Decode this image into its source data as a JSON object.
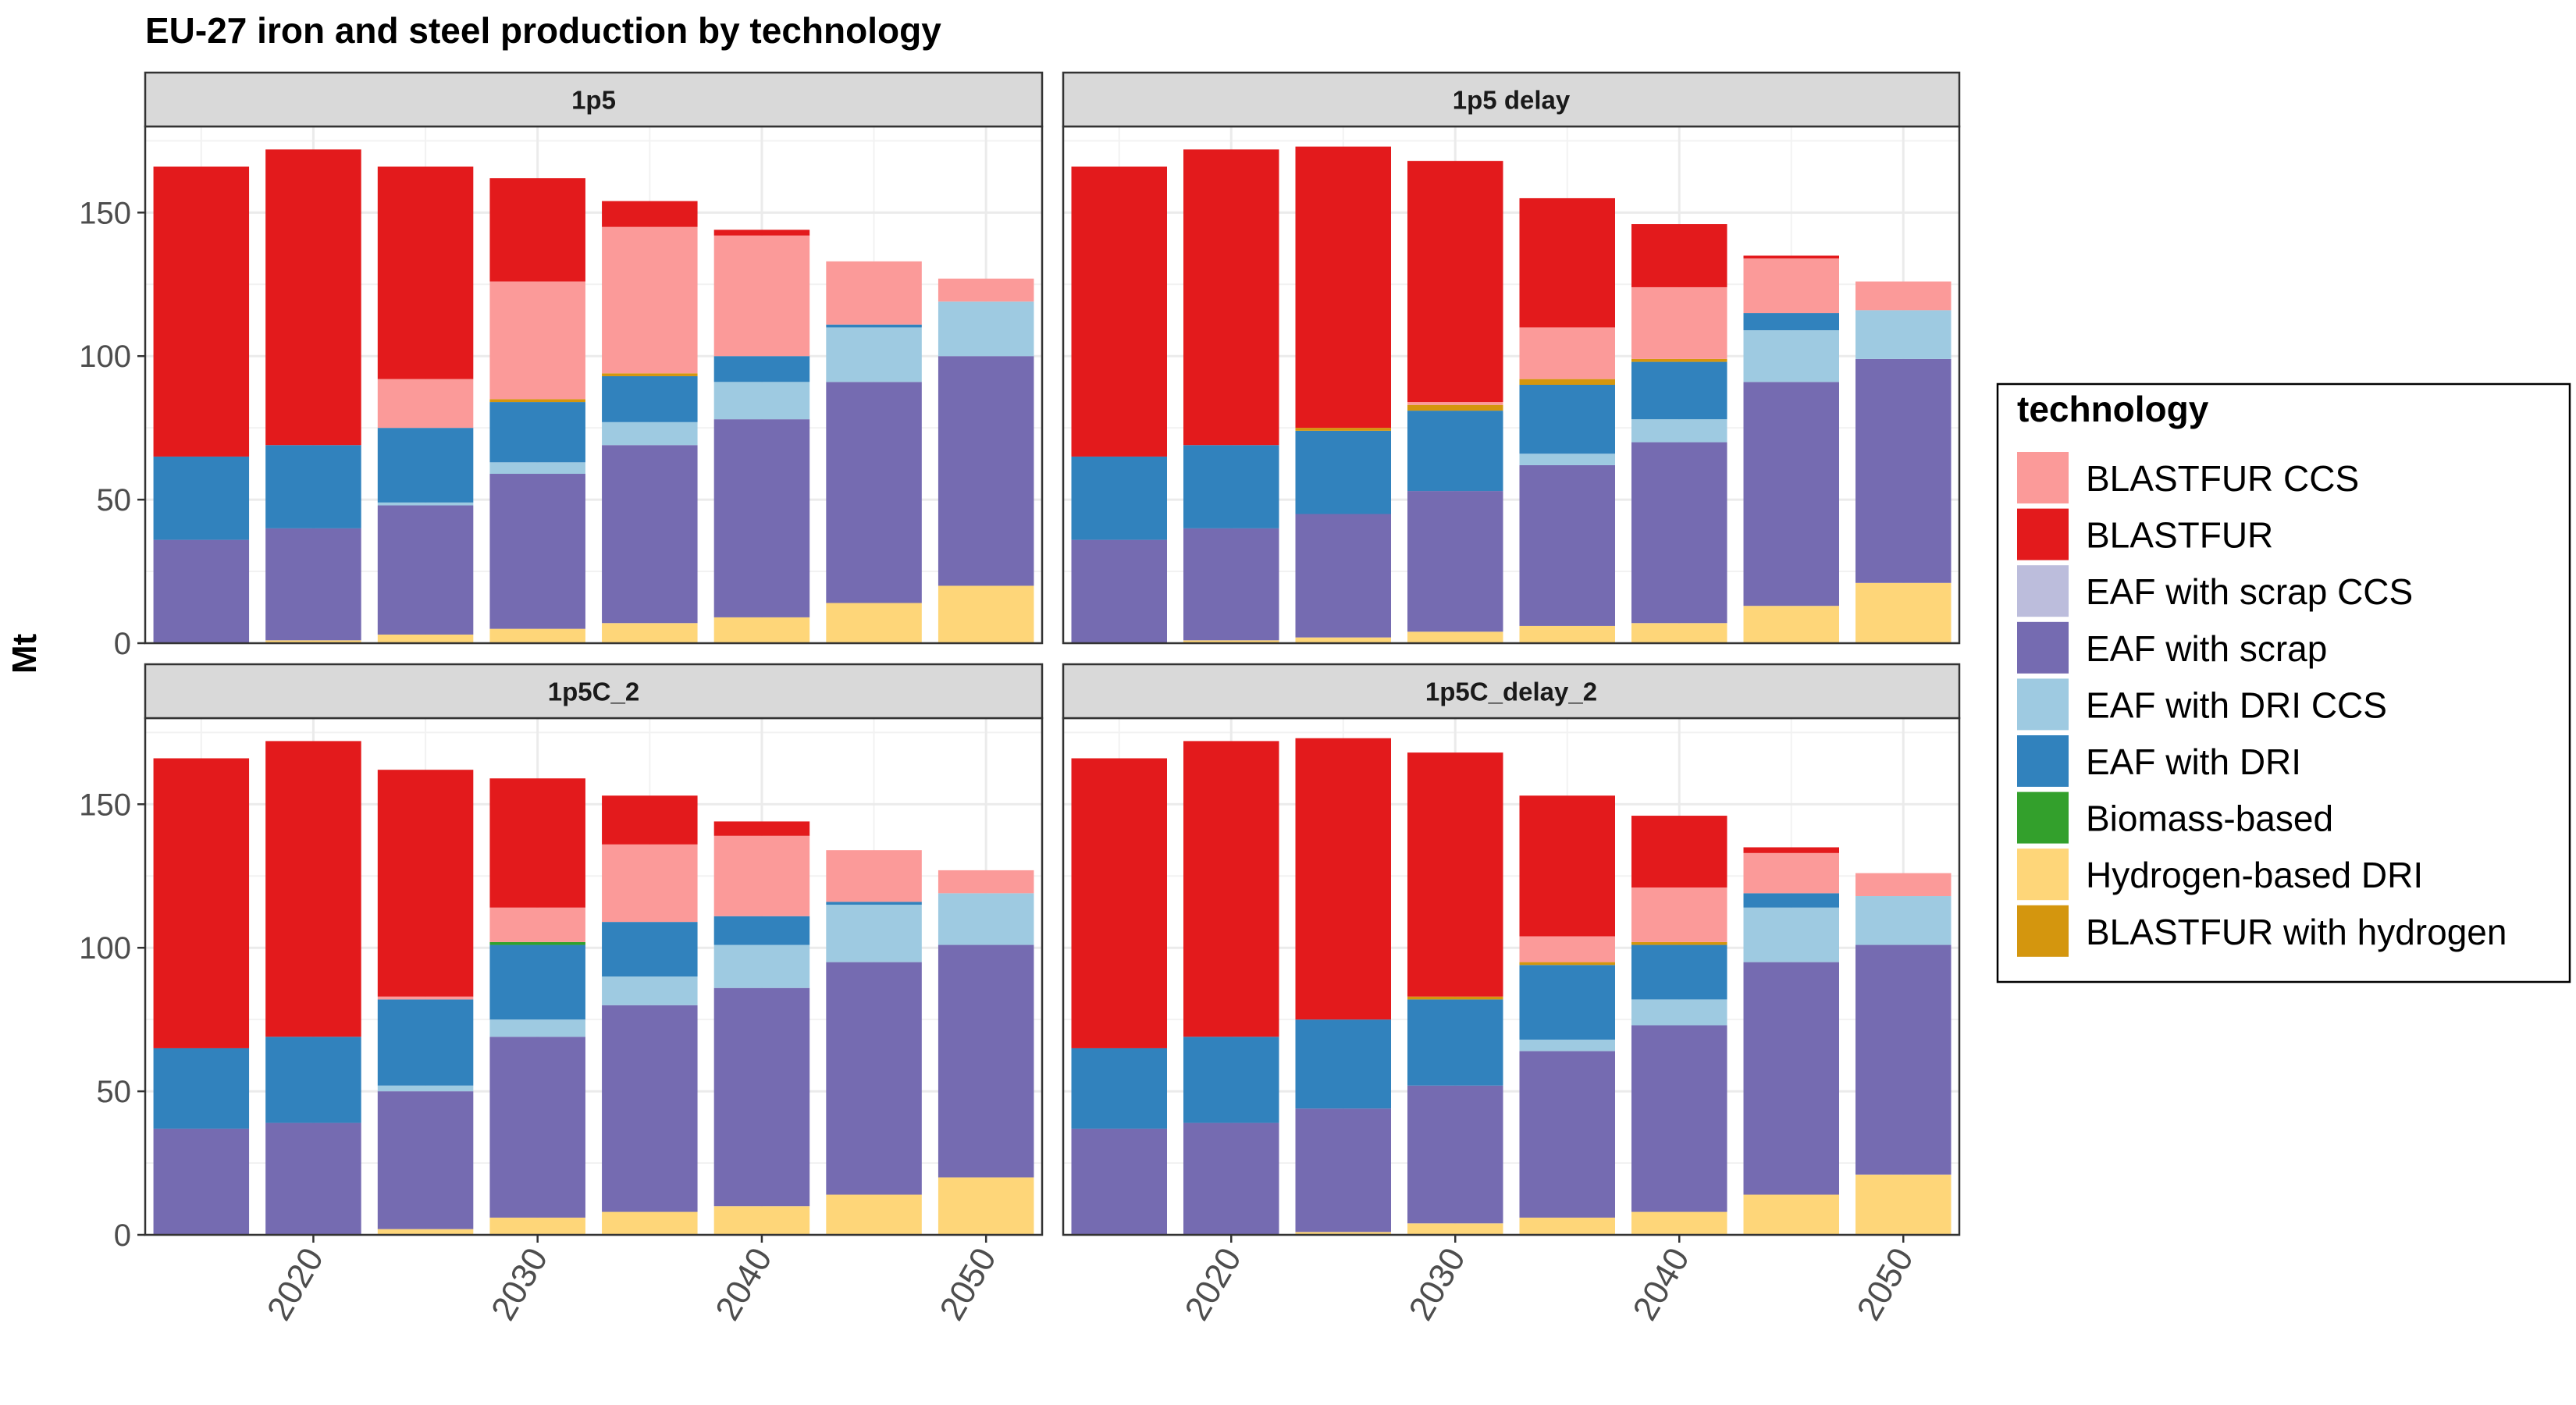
{
  "chart_data": {
    "type": "bar",
    "stacked": true,
    "title": "EU-27 iron and steel production by technology",
    "ylabel": "Mt",
    "xlabel": "",
    "ylim": [
      0,
      180
    ],
    "yticks": [
      0,
      50,
      100,
      150
    ],
    "xlim": [
      2012.5,
      2052.5
    ],
    "xticks": [
      2020,
      2030,
      2040,
      2050
    ],
    "x": [
      2015,
      2020,
      2025,
      2030,
      2035,
      2040,
      2045,
      2050
    ],
    "grid": true,
    "legend": {
      "title": "technology",
      "position": "right"
    },
    "series_styles": [
      {
        "name": "BLASTFUR CCS",
        "color": "#fb9a99"
      },
      {
        "name": "BLASTFUR",
        "color": "#e31a1c"
      },
      {
        "name": "EAF with scrap CCS",
        "color": "#bcbddc"
      },
      {
        "name": "EAF with scrap",
        "color": "#756bb1"
      },
      {
        "name": "EAF with DRI CCS",
        "color": "#9ecae1"
      },
      {
        "name": "EAF with DRI",
        "color": "#3182bd"
      },
      {
        "name": "Biomass-based",
        "color": "#33a02c"
      },
      {
        "name": "Hydrogen-based DRI",
        "color": "#fed679"
      },
      {
        "name": "BLASTFUR with hydrogen",
        "color": "#d4960e"
      }
    ],
    "stack_order": [
      "Hydrogen-based DRI",
      "EAF with scrap",
      "EAF with scrap CCS",
      "EAF with DRI CCS",
      "EAF with DRI",
      "Biomass-based",
      "BLASTFUR with hydrogen",
      "BLASTFUR CCS",
      "BLASTFUR"
    ],
    "panels": [
      {
        "name": "1p5",
        "series": [
          {
            "name": "Hydrogen-based DRI",
            "values": [
              0,
              1,
              3,
              5,
              7,
              9,
              14,
              20
            ]
          },
          {
            "name": "EAF with scrap",
            "values": [
              36,
              39,
              45,
              54,
              62,
              69,
              77,
              80
            ]
          },
          {
            "name": "EAF with scrap CCS",
            "values": [
              0,
              0,
              0,
              0,
              0,
              0,
              0,
              0
            ]
          },
          {
            "name": "EAF with DRI CCS",
            "values": [
              0,
              0,
              1,
              4,
              8,
              13,
              19,
              19
            ]
          },
          {
            "name": "EAF with DRI",
            "values": [
              29,
              29,
              26,
              21,
              16,
              9,
              1,
              0
            ]
          },
          {
            "name": "Biomass-based",
            "values": [
              0,
              0,
              0,
              0,
              0,
              0,
              0,
              0
            ]
          },
          {
            "name": "BLASTFUR with hydrogen",
            "values": [
              0,
              0,
              0,
              1,
              1,
              0,
              0,
              0
            ]
          },
          {
            "name": "BLASTFUR CCS",
            "values": [
              0,
              0,
              17,
              41,
              51,
              42,
              22,
              8
            ]
          },
          {
            "name": "BLASTFUR",
            "values": [
              101,
              103,
              74,
              36,
              9,
              2,
              0,
              0
            ]
          }
        ]
      },
      {
        "name": "1p5 delay",
        "series": [
          {
            "name": "Hydrogen-based DRI",
            "values": [
              0,
              1,
              2,
              4,
              6,
              7,
              13,
              21
            ]
          },
          {
            "name": "EAF with scrap",
            "values": [
              36,
              39,
              43,
              49,
              56,
              63,
              78,
              78
            ]
          },
          {
            "name": "EAF with scrap CCS",
            "values": [
              0,
              0,
              0,
              0,
              0,
              0,
              0,
              0
            ]
          },
          {
            "name": "EAF with DRI CCS",
            "values": [
              0,
              0,
              0,
              0,
              4,
              8,
              18,
              17
            ]
          },
          {
            "name": "EAF with DRI",
            "values": [
              29,
              29,
              29,
              28,
              24,
              20,
              6,
              0
            ]
          },
          {
            "name": "Biomass-based",
            "values": [
              0,
              0,
              0,
              0,
              0,
              0,
              0,
              0
            ]
          },
          {
            "name": "BLASTFUR with hydrogen",
            "values": [
              0,
              0,
              1,
              2,
              2,
              1,
              0,
              0
            ]
          },
          {
            "name": "BLASTFUR CCS",
            "values": [
              0,
              0,
              0,
              1,
              18,
              25,
              19,
              10
            ]
          },
          {
            "name": "BLASTFUR",
            "values": [
              101,
              103,
              98,
              84,
              45,
              22,
              1,
              0
            ]
          }
        ]
      },
      {
        "name": "1p5C_2",
        "series": [
          {
            "name": "Hydrogen-based DRI",
            "values": [
              0,
              0,
              2,
              6,
              8,
              10,
              14,
              20
            ]
          },
          {
            "name": "EAF with scrap",
            "values": [
              37,
              39,
              48,
              63,
              72,
              76,
              81,
              81
            ]
          },
          {
            "name": "EAF with scrap CCS",
            "values": [
              0,
              0,
              0,
              0,
              0,
              0,
              0,
              0
            ]
          },
          {
            "name": "EAF with DRI CCS",
            "values": [
              0,
              0,
              2,
              6,
              10,
              15,
              20,
              18
            ]
          },
          {
            "name": "EAF with DRI",
            "values": [
              28,
              30,
              30,
              26,
              19,
              10,
              1,
              0
            ]
          },
          {
            "name": "Biomass-based",
            "values": [
              0,
              0,
              0,
              1,
              0,
              0,
              0,
              0
            ]
          },
          {
            "name": "BLASTFUR with hydrogen",
            "values": [
              0,
              0,
              0,
              0,
              0,
              0,
              0,
              0
            ]
          },
          {
            "name": "BLASTFUR CCS",
            "values": [
              0,
              0,
              1,
              12,
              27,
              28,
              18,
              8
            ]
          },
          {
            "name": "BLASTFUR",
            "values": [
              101,
              103,
              79,
              45,
              17,
              5,
              0,
              0
            ]
          }
        ]
      },
      {
        "name": "1p5C_delay_2",
        "series": [
          {
            "name": "Hydrogen-based DRI",
            "values": [
              0,
              0,
              1,
              4,
              6,
              8,
              14,
              21
            ]
          },
          {
            "name": "EAF with scrap",
            "values": [
              37,
              39,
              43,
              48,
              58,
              65,
              81,
              80
            ]
          },
          {
            "name": "EAF with scrap CCS",
            "values": [
              0,
              0,
              0,
              0,
              0,
              0,
              0,
              0
            ]
          },
          {
            "name": "EAF with DRI CCS",
            "values": [
              0,
              0,
              0,
              0,
              4,
              9,
              19,
              17
            ]
          },
          {
            "name": "EAF with DRI",
            "values": [
              28,
              30,
              31,
              30,
              26,
              19,
              5,
              0
            ]
          },
          {
            "name": "Biomass-based",
            "values": [
              0,
              0,
              0,
              0,
              0,
              0,
              0,
              0
            ]
          },
          {
            "name": "BLASTFUR with hydrogen",
            "values": [
              0,
              0,
              0,
              1,
              1,
              1,
              0,
              0
            ]
          },
          {
            "name": "BLASTFUR CCS",
            "values": [
              0,
              0,
              0,
              0,
              9,
              19,
              14,
              8
            ]
          },
          {
            "name": "BLASTFUR",
            "values": [
              101,
              103,
              98,
              85,
              49,
              25,
              2,
              0
            ]
          }
        ]
      }
    ]
  }
}
